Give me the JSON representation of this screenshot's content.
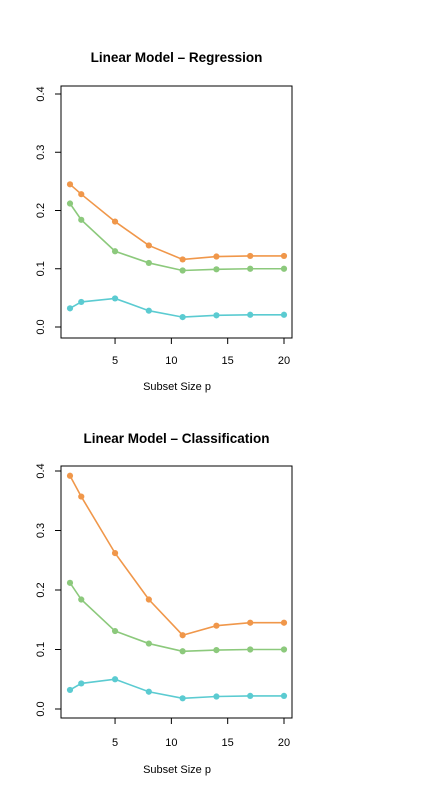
{
  "chart_data": [
    {
      "type": "line",
      "title": "Linear Model – Regression",
      "xlabel": "Subset Size p",
      "ylabel": "",
      "xlim": [
        1,
        20
      ],
      "ylim": [
        0,
        0.4
      ],
      "x_ticks": [
        "5",
        "10",
        "15",
        "20"
      ],
      "y_ticks": [
        "0.0",
        "0.1",
        "0.2",
        "0.3",
        "0.4"
      ],
      "legend": "none",
      "grid": false,
      "x": [
        1,
        2,
        5,
        8,
        11,
        14,
        17,
        20
      ],
      "series": [
        {
          "color": "#F0974A",
          "values": [
            0.245,
            0.228,
            0.181,
            0.14,
            0.116,
            0.121,
            0.122,
            0.122
          ]
        },
        {
          "color": "#8CC97C",
          "values": [
            0.212,
            0.184,
            0.13,
            0.11,
            0.097,
            0.099,
            0.1,
            0.1
          ]
        },
        {
          "color": "#5BCBD1",
          "values": [
            0.032,
            0.043,
            0.049,
            0.028,
            0.017,
            0.02,
            0.021,
            0.021
          ]
        }
      ]
    },
    {
      "type": "line",
      "title": "Linear Model – Classification",
      "xlabel": "Subset Size p",
      "ylabel": "",
      "xlim": [
        1,
        20
      ],
      "ylim": [
        0,
        0.4
      ],
      "x_ticks": [
        "5",
        "10",
        "15",
        "20"
      ],
      "y_ticks": [
        "0.0",
        "0.1",
        "0.2",
        "0.3",
        "0.4"
      ],
      "legend": "none",
      "grid": false,
      "x": [
        1,
        2,
        5,
        8,
        11,
        14,
        17,
        20
      ],
      "series": [
        {
          "color": "#F0974A",
          "values": [
            0.392,
            0.357,
            0.262,
            0.184,
            0.124,
            0.14,
            0.145,
            0.145
          ]
        },
        {
          "color": "#8CC97C",
          "values": [
            0.212,
            0.184,
            0.131,
            0.11,
            0.097,
            0.099,
            0.1,
            0.1
          ]
        },
        {
          "color": "#5BCBD1",
          "values": [
            0.032,
            0.043,
            0.05,
            0.029,
            0.018,
            0.021,
            0.022,
            0.022
          ]
        }
      ]
    }
  ]
}
